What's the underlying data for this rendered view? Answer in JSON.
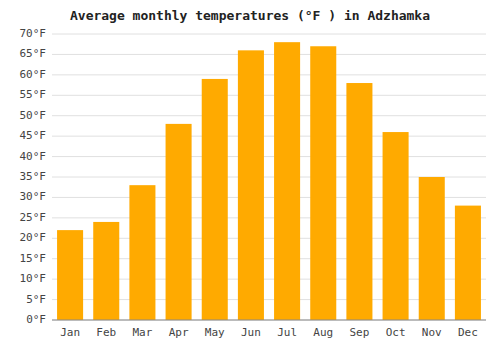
{
  "chart_data": {
    "type": "bar",
    "title": "Average monthly temperatures (°F ) in Adzhamka",
    "categories": [
      "Jan",
      "Feb",
      "Mar",
      "Apr",
      "May",
      "Jun",
      "Jul",
      "Aug",
      "Sep",
      "Oct",
      "Nov",
      "Dec"
    ],
    "values": [
      22,
      24,
      33,
      48,
      59,
      66,
      68,
      67,
      58,
      46,
      35,
      28
    ],
    "color": "#FFAA00",
    "ylim": [
      0,
      70
    ],
    "yticks": [
      {
        "value": 0,
        "label": "0°F"
      },
      {
        "value": 5,
        "label": "5°F"
      },
      {
        "value": 10,
        "label": "10°F"
      },
      {
        "value": 15,
        "label": "15°F"
      },
      {
        "value": 20,
        "label": "20°F"
      },
      {
        "value": 25,
        "label": "25°F"
      },
      {
        "value": 30,
        "label": "30°F"
      },
      {
        "value": 35,
        "label": "35°F"
      },
      {
        "value": 40,
        "label": "40°F"
      },
      {
        "value": 45,
        "label": "45°F"
      },
      {
        "value": 50,
        "label": "50°F"
      },
      {
        "value": 55,
        "label": "55°F"
      },
      {
        "value": 60,
        "label": "60°F"
      },
      {
        "value": 65,
        "label": "65°F"
      },
      {
        "value": 70,
        "label": "70°F"
      }
    ],
    "grid": true
  }
}
